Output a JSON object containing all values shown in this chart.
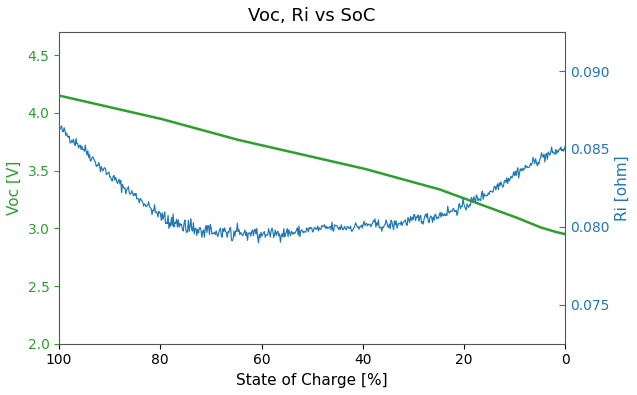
{
  "title": "Voc, Ri vs SoC",
  "xlabel": "State of Charge [%]",
  "ylabel_left": "Voc [V]",
  "ylabel_right": "Ri [ohm]",
  "left_color": "#2ca02c",
  "right_color": "#1f77b4",
  "xlim": [
    100,
    0
  ],
  "xticks": [
    100,
    80,
    60,
    40,
    20,
    0
  ],
  "ylim_left": [
    2.0,
    4.7
  ],
  "yticks_left": [
    2.0,
    2.5,
    3.0,
    3.5,
    4.0,
    4.5
  ],
  "ylim_right": [
    0.0725,
    0.0925
  ],
  "yticks_right": [
    0.075,
    0.08,
    0.085,
    0.09
  ],
  "voc_knots_soc": [
    100,
    95,
    90,
    85,
    80,
    75,
    70,
    65,
    60,
    55,
    50,
    45,
    40,
    35,
    30,
    25,
    20,
    15,
    10,
    5,
    2,
    0
  ],
  "voc_knots_val": [
    4.15,
    4.1,
    4.05,
    4.0,
    3.95,
    3.89,
    3.83,
    3.77,
    3.72,
    3.67,
    3.62,
    3.57,
    3.52,
    3.46,
    3.4,
    3.34,
    3.26,
    3.18,
    3.1,
    3.01,
    2.97,
    2.95
  ],
  "ri_knots_soc": [
    100,
    95,
    90,
    85,
    80,
    75,
    70,
    65,
    60,
    55,
    50,
    45,
    40,
    35,
    30,
    25,
    20,
    15,
    10,
    5,
    0
  ],
  "ri_knots_val": [
    0.08635,
    0.0849,
    0.0833,
    0.0821,
    0.08085,
    0.08015,
    0.0799,
    0.07975,
    0.07975,
    0.0798,
    0.07985,
    0.07995,
    0.0801,
    0.0802,
    0.08045,
    0.0807,
    0.08135,
    0.08225,
    0.0833,
    0.0843,
    0.0851
  ],
  "ri_noise_seed": 42,
  "ri_num_points": 600,
  "ri_noise_std": 0.00035,
  "figsize": [
    6.37,
    3.95
  ],
  "dpi": 100
}
